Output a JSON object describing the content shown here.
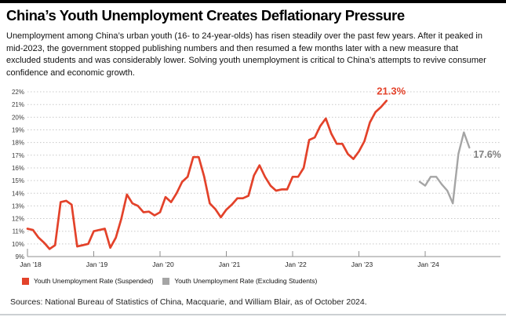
{
  "header": {
    "title": "China’s Youth Unemployment Creates Deflationary Pressure",
    "description": "Unemployment among China’s urban youth (16- to 24-year-olds) has risen steadily over the past few years. After it peaked in\nmid-2023, the government stopped publishing numbers and then resumed a few months later with a new measure that\nexcluded students and was considerably lower. Solving youth unemployment is critical to China’s attempts to revive consumer\nconfidence and economic growth."
  },
  "colors": {
    "suspended_line": "#E3422A",
    "excluding_line": "#A5A5A5",
    "excluding_label": "#808080",
    "gridline": "#c8c8c8",
    "axis": "#8f8f8f",
    "accent_bar": "#000000"
  },
  "chart_data": {
    "type": "line",
    "x_unit": "month",
    "ylim": [
      9,
      22
    ],
    "grid": "horizontal-dashed",
    "legend_position": "bottom-left",
    "y_ticks": [
      {
        "value": 9,
        "label": "9%"
      },
      {
        "value": 10,
        "label": "10%"
      },
      {
        "value": 11,
        "label": "11%"
      },
      {
        "value": 12,
        "label": "12%"
      },
      {
        "value": 13,
        "label": "13%"
      },
      {
        "value": 14,
        "label": "14%"
      },
      {
        "value": 15,
        "label": "15%"
      },
      {
        "value": 16,
        "label": "16%"
      },
      {
        "value": 17,
        "label": "17%"
      },
      {
        "value": 18,
        "label": "18%"
      },
      {
        "value": 19,
        "label": "19%"
      },
      {
        "value": 20,
        "label": "20%"
      },
      {
        "value": 21,
        "label": "21%"
      },
      {
        "value": 22,
        "label": "22%"
      }
    ],
    "x_ticks": [
      {
        "index": 0,
        "label": "Jan ’18"
      },
      {
        "index": 12,
        "label": "Jan ’19"
      },
      {
        "index": 24,
        "label": "Jan ’20"
      },
      {
        "index": 36,
        "label": "Jan ’21"
      },
      {
        "index": 48,
        "label": "Jan ’22"
      },
      {
        "index": 60,
        "label": "Jan ’23"
      },
      {
        "index": 72,
        "label": "Jan ’24"
      }
    ],
    "series": [
      {
        "name": "Youth Unemployment Rate (Suspended)",
        "color": "#E3422A",
        "label_color": "#E3422A",
        "start": "Jan 2018",
        "end": "Jun 2023",
        "start_index": 0,
        "end_label": "21.3%",
        "values": [
          11.2,
          11.1,
          10.5,
          10.1,
          9.6,
          9.9,
          13.3,
          13.4,
          13.1,
          9.8,
          9.9,
          10.0,
          11.0,
          11.1,
          11.2,
          9.7,
          10.5,
          12.0,
          13.9,
          13.2,
          13.0,
          12.5,
          12.55,
          12.25,
          12.5,
          13.7,
          13.3,
          14.0,
          14.9,
          15.3,
          16.85,
          16.85,
          15.3,
          13.2,
          12.75,
          12.1,
          12.7,
          13.1,
          13.6,
          13.6,
          13.8,
          15.4,
          16.2,
          15.3,
          14.6,
          14.2,
          14.3,
          14.3,
          15.3,
          15.3,
          16.0,
          18.2,
          18.4,
          19.3,
          19.9,
          18.7,
          17.9,
          17.9,
          17.1,
          16.7,
          17.3,
          18.1,
          19.6,
          20.4,
          20.8,
          21.3
        ]
      },
      {
        "name": "Youth Unemployment Rate (Excluding Students)",
        "color": "#A5A5A5",
        "label_color": "#808080",
        "start": "Dec 2023",
        "end": "Sep 2024",
        "start_index": 71,
        "end_label": "17.6%",
        "values": [
          14.9,
          14.6,
          15.3,
          15.3,
          14.7,
          14.2,
          13.2,
          17.1,
          18.8,
          17.6
        ]
      }
    ]
  },
  "footer": {
    "source": "Sources: National Bureau of Statistics of China, Macquarie, and William Blair, as of October 2024."
  }
}
